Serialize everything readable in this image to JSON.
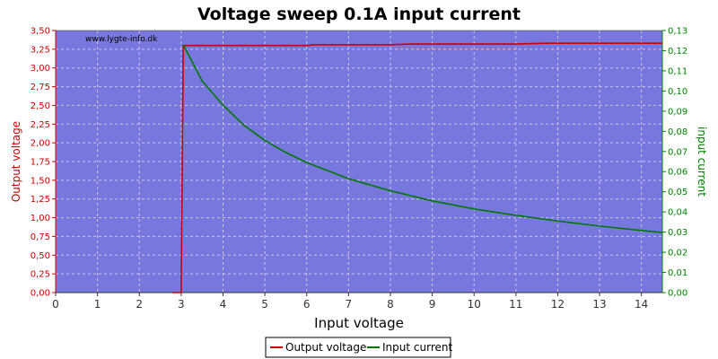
{
  "chart_data": {
    "type": "line",
    "title": "Voltage sweep 0.1A input current",
    "xlabel": "Input voltage",
    "ylabel_left": "Output voltage",
    "ylabel_right": "input current",
    "watermark": "www.lygte-info.dk",
    "xlim": [
      0,
      14.5
    ],
    "ylim_left": [
      0,
      3.5
    ],
    "ylim_right": [
      0,
      0.13
    ],
    "x_ticks": [
      "0",
      "1",
      "2",
      "3",
      "4",
      "5",
      "6",
      "7",
      "8",
      "9",
      "10",
      "11",
      "12",
      "13",
      "14"
    ],
    "y_left_ticks": [
      "0,00",
      "0,25",
      "0,50",
      "0,75",
      "1,00",
      "1,25",
      "1,50",
      "1,75",
      "2,00",
      "2,25",
      "2,50",
      "2,75",
      "3,00",
      "3,25",
      "3,50"
    ],
    "y_right_ticks": [
      "0,00",
      "0,01",
      "0,02",
      "0,03",
      "0,04",
      "0,05",
      "0,06",
      "0,07",
      "0,08",
      "0,09",
      "0,10",
      "0,11",
      "0,12",
      "0,13"
    ],
    "grid": true,
    "legend_position": "bottom-center",
    "colors": {
      "plot_bg": "#7777dd",
      "output": "#cc0000",
      "input": "#007700",
      "grid": "#c8c8f0"
    },
    "series": [
      {
        "name": "Output voltage",
        "axis": "left",
        "x": [
          2.8,
          3.0,
          3.05,
          3.5,
          4,
          5,
          6,
          6.2,
          7,
          8,
          8.5,
          9,
          10,
          11,
          11.7,
          12,
          13,
          14,
          14.5
        ],
        "y": [
          0.0,
          0.0,
          3.3,
          3.3,
          3.3,
          3.3,
          3.3,
          3.31,
          3.31,
          3.31,
          3.32,
          3.32,
          3.32,
          3.32,
          3.33,
          3.33,
          3.33,
          3.33,
          3.33
        ]
      },
      {
        "name": "Input current",
        "axis": "right",
        "x": [
          3.05,
          3.2,
          3.5,
          4,
          4.5,
          5,
          5.5,
          6,
          7,
          8,
          9,
          10,
          11,
          12,
          13,
          14,
          14.5
        ],
        "y": [
          0.123,
          0.117,
          0.105,
          0.093,
          0.083,
          0.0755,
          0.0695,
          0.0645,
          0.0565,
          0.0505,
          0.0455,
          0.0415,
          0.0383,
          0.0355,
          0.033,
          0.0308,
          0.0298
        ]
      }
    ]
  }
}
